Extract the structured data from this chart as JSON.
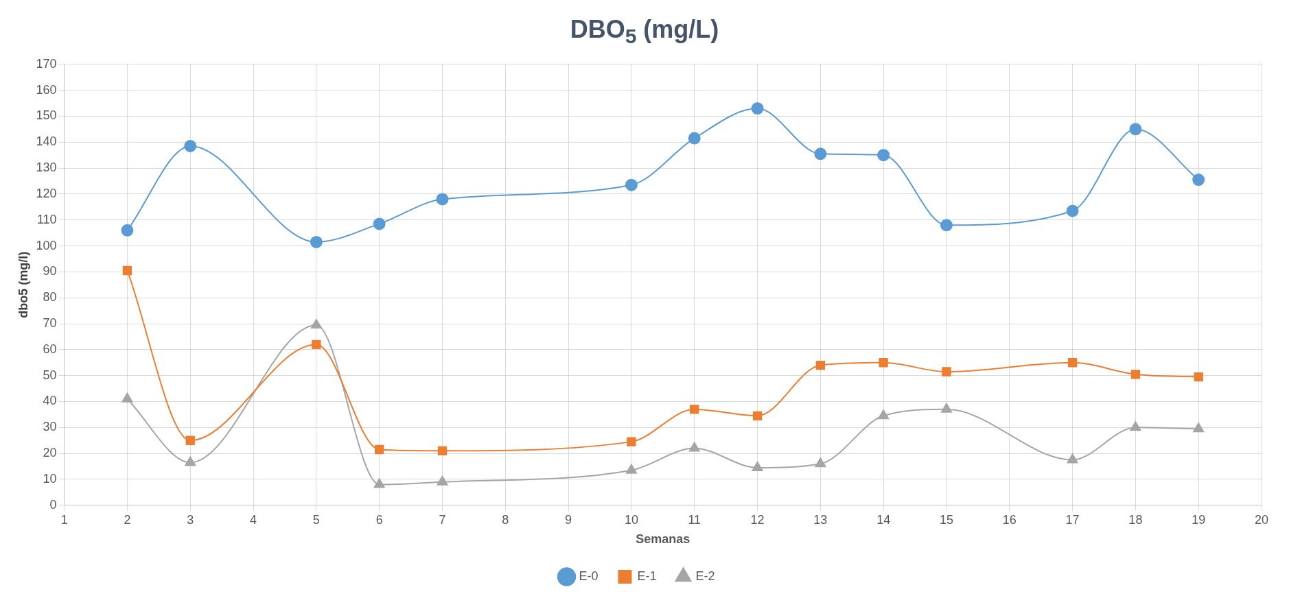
{
  "chart_data": {
    "type": "line",
    "title": "DBO$_{5}$ (mg/L)",
    "xlabel": "Semanas",
    "ylabel": "dbo5 (mg/l)",
    "x": [
      2,
      3,
      5,
      6,
      7,
      10,
      11,
      12,
      13,
      14,
      15,
      17,
      18,
      19
    ],
    "series": [
      {
        "name": "E-0",
        "color": "#5b9bd5",
        "marker": "circle",
        "values": [
          106,
          138.5,
          101.5,
          108.5,
          118,
          123.5,
          141.5,
          153,
          135.5,
          135,
          108,
          113.5,
          145,
          125.5
        ]
      },
      {
        "name": "E-1",
        "color": "#ed7d31",
        "marker": "square",
        "values": [
          90.5,
          25,
          62,
          21.5,
          21,
          24.5,
          37,
          34.5,
          54,
          55,
          51.5,
          55,
          50.5,
          49.5
        ]
      },
      {
        "name": "E-2",
        "color": "#a5a5a5",
        "marker": "triangle",
        "values": [
          41,
          16.5,
          69.5,
          8,
          9,
          13.5,
          22,
          14.5,
          16,
          34.5,
          37,
          17.5,
          30,
          29.5
        ]
      }
    ],
    "xlim": [
      1,
      20
    ],
    "xticks": [
      1,
      2,
      3,
      4,
      5,
      6,
      7,
      8,
      9,
      10,
      11,
      12,
      13,
      14,
      15,
      16,
      17,
      18,
      19,
      20
    ],
    "ylim": [
      0,
      170
    ],
    "yticks": [
      0,
      10,
      20,
      30,
      40,
      50,
      60,
      70,
      80,
      90,
      100,
      110,
      120,
      130,
      140,
      150,
      160,
      170
    ],
    "grid": true,
    "legend": "bottom"
  }
}
